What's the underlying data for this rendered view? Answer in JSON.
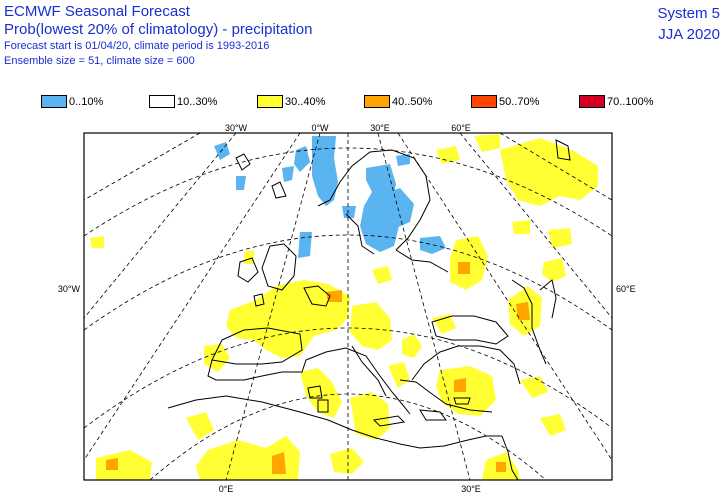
{
  "header": {
    "title": "ECMWF Seasonal Forecast",
    "subtitle": "Prob(lowest 20% of climatology) - precipitation",
    "forecast_line": "Forecast start is 01/04/20, climate period is 1993-2016",
    "ensemble_line": "Ensemble size = 51, climate size = 600",
    "system": "System 5",
    "season": "JJA 2020"
  },
  "legend": [
    {
      "label": "0..10%",
      "color": "#5ab4f0"
    },
    {
      "label": "10..30%",
      "color": "#ffffff"
    },
    {
      "label": "30..40%",
      "color": "#ffff33"
    },
    {
      "label": "40..50%",
      "color": "#ffa500"
    },
    {
      "label": "50..70%",
      "color": "#ff4500"
    },
    {
      "label": "70..100%",
      "color": "#d40023"
    }
  ],
  "map": {
    "top_labels": [
      "30°W",
      "0°W",
      "30°E",
      "60°E"
    ],
    "left_label": "30°W",
    "right_label": "60°E",
    "bottom_labels": [
      "0°E",
      "30°E"
    ]
  }
}
